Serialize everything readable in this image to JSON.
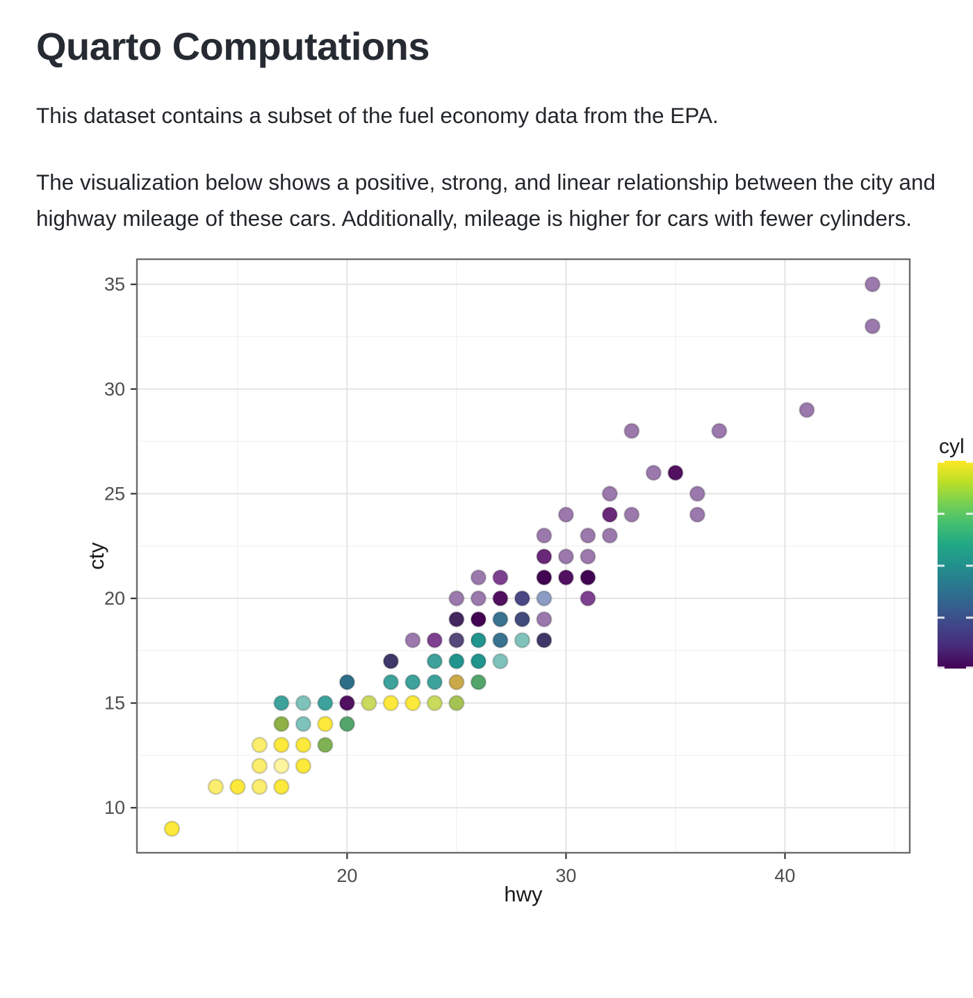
{
  "doc": {
    "title": "Quarto Computations",
    "paragraph1": "This dataset contains a subset of the fuel economy data from the EPA.",
    "paragraph2": "The visualization below shows a positive, strong, and linear relationship between the city and highway mileage of these cars. Additionally, mileage is higher for cars with fewer cylinders."
  },
  "chart_data": {
    "type": "scatter",
    "title": "",
    "xlabel": "hwy",
    "ylabel": "cty",
    "x_ticks": [
      20,
      30,
      40
    ],
    "x_minor_ticks": [
      15,
      25,
      35,
      45
    ],
    "y_ticks": [
      10,
      15,
      20,
      25,
      30,
      35
    ],
    "y_minor_ticks": [
      12.5,
      17.5,
      22.5,
      27.5,
      32.5
    ],
    "xlim": [
      10.4,
      45.7
    ],
    "ylim": [
      7.85,
      36.2
    ],
    "grid": "major+minor",
    "legend": {
      "title": "cyl",
      "type": "colorbar",
      "position": "right",
      "scale": "viridis",
      "domain_low_to_high": [
        4,
        8
      ],
      "tick_fractions_from_top": [
        0,
        0.25,
        0.5,
        0.75,
        1
      ],
      "numeric_labels_visible": false
    },
    "point_style": {
      "alpha": 0.6,
      "radius_px": 10.5
    },
    "color_semantics": {
      "y*/yg/ol/og/mu": "8-cylinder (viridis yellow, pale = single point, saturated = overplotted)",
      "t*/tb/sb": "6-cylinder (viridis teal, blends with others when overplotted)",
      "b1/nb/ns": "5-cylinder (viridis slate blue / blends)",
      "p*/ip/sp/dp/gn/gn2": "4-cylinder (viridis purple) and purple/teal/yellow overplot blends"
    },
    "palette": {
      "y0": "#FDF4A0",
      "y1": "#FBEE6E",
      "y2": "#FCE93B",
      "yg": "#C9DA5F",
      "ol": "#A5C353",
      "og": "#8FB148",
      "gn2": "#7FB254",
      "gn": "#54A56B",
      "mu": "#CBA94A",
      "t1": "#7FC2BC",
      "t2": "#3DA29B",
      "t3": "#21948D",
      "tb": "#2E6E86",
      "sb": "#3A7390",
      "b1": "#8C9CC2",
      "nb": "#4A4784",
      "ns": "#424C7C",
      "ip": "#3E3868",
      "sp": "#55487A",
      "dp": "#44275E",
      "p1": "#9B79AC",
      "pm": "#7E4190",
      "p2": "#6A2878",
      "p3": "#511060",
      "p4": "#420452"
    },
    "viridis_stops_top_to_bottom": [
      "#FDE725",
      "#BDDF26",
      "#7AD151",
      "#44BF70",
      "#22A884",
      "#21918C",
      "#2A788E",
      "#355F8D",
      "#414487",
      "#482878",
      "#440154"
    ],
    "point_format": [
      "hwy",
      "cty",
      "color_key"
    ],
    "points": [
      [
        12,
        9,
        "y2"
      ],
      [
        14,
        11,
        "y1"
      ],
      [
        15,
        11,
        "y2"
      ],
      [
        16,
        11,
        "y1"
      ],
      [
        17,
        11,
        "y2"
      ],
      [
        16,
        12,
        "y1"
      ],
      [
        17,
        12,
        "y0"
      ],
      [
        18,
        12,
        "y2"
      ],
      [
        16,
        13,
        "y1"
      ],
      [
        17,
        13,
        "y2"
      ],
      [
        18,
        13,
        "y2"
      ],
      [
        19,
        13,
        "gn2"
      ],
      [
        17,
        14,
        "og"
      ],
      [
        18,
        14,
        "t1"
      ],
      [
        19,
        14,
        "y2"
      ],
      [
        20,
        14,
        "gn"
      ],
      [
        17,
        15,
        "t2"
      ],
      [
        18,
        15,
        "t1"
      ],
      [
        19,
        15,
        "t2"
      ],
      [
        20,
        15,
        "p3"
      ],
      [
        21,
        15,
        "yg"
      ],
      [
        22,
        15,
        "y2"
      ],
      [
        23,
        15,
        "y2"
      ],
      [
        24,
        15,
        "yg"
      ],
      [
        25,
        15,
        "ol"
      ],
      [
        20,
        16,
        "tb"
      ],
      [
        22,
        16,
        "t2"
      ],
      [
        23,
        16,
        "t2"
      ],
      [
        24,
        16,
        "t2"
      ],
      [
        25,
        16,
        "mu"
      ],
      [
        26,
        16,
        "gn"
      ],
      [
        22,
        17,
        "ip"
      ],
      [
        24,
        17,
        "t2"
      ],
      [
        25,
        17,
        "t3"
      ],
      [
        26,
        17,
        "t3"
      ],
      [
        27,
        17,
        "t1"
      ],
      [
        23,
        18,
        "p1"
      ],
      [
        24,
        18,
        "pm"
      ],
      [
        25,
        18,
        "sp"
      ],
      [
        26,
        18,
        "t3"
      ],
      [
        27,
        18,
        "sb"
      ],
      [
        28,
        18,
        "t1"
      ],
      [
        29,
        18,
        "ip"
      ],
      [
        25,
        19,
        "dp"
      ],
      [
        26,
        19,
        "p4"
      ],
      [
        27,
        19,
        "sb"
      ],
      [
        28,
        19,
        "ns"
      ],
      [
        29,
        19,
        "p1"
      ],
      [
        25,
        20,
        "p1"
      ],
      [
        26,
        20,
        "p1"
      ],
      [
        27,
        20,
        "p3"
      ],
      [
        28,
        20,
        "nb"
      ],
      [
        29,
        20,
        "b1"
      ],
      [
        31,
        20,
        "pm"
      ],
      [
        26,
        21,
        "p1"
      ],
      [
        27,
        21,
        "pm"
      ],
      [
        29,
        21,
        "p4"
      ],
      [
        30,
        21,
        "p3"
      ],
      [
        31,
        21,
        "p4"
      ],
      [
        29,
        22,
        "p2"
      ],
      [
        30,
        22,
        "p1"
      ],
      [
        31,
        22,
        "p1"
      ],
      [
        29,
        23,
        "p1"
      ],
      [
        31,
        23,
        "p1"
      ],
      [
        32,
        23,
        "p1"
      ],
      [
        30,
        24,
        "p1"
      ],
      [
        32,
        24,
        "p2"
      ],
      [
        33,
        24,
        "p1"
      ],
      [
        36,
        24,
        "p1"
      ],
      [
        32,
        25,
        "p1"
      ],
      [
        36,
        25,
        "p1"
      ],
      [
        34,
        26,
        "p1"
      ],
      [
        35,
        26,
        "p3"
      ],
      [
        33,
        28,
        "p1"
      ],
      [
        37,
        28,
        "p1"
      ],
      [
        41,
        29,
        "p1"
      ],
      [
        44,
        33,
        "p1"
      ],
      [
        44,
        35,
        "p1"
      ]
    ]
  }
}
